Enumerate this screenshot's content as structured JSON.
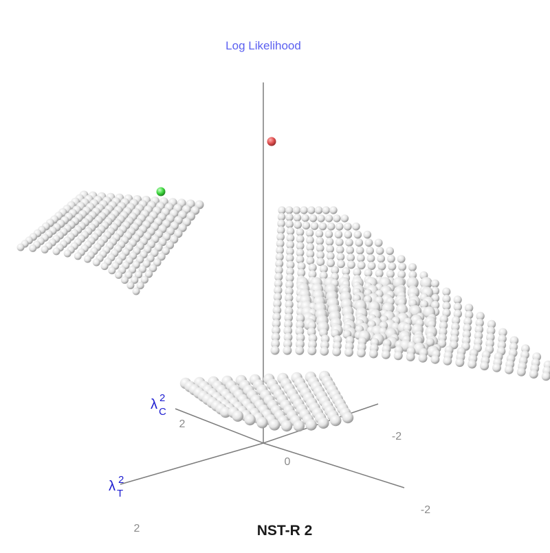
{
  "chart_data": {
    "type": "scatter",
    "subtype": "3d-sphere-surface",
    "title": "NST-R 2",
    "z_axis_label": "Log Likelihood",
    "x_axis_label": {
      "base": "λ",
      "sup": "2",
      "sub": "T"
    },
    "y_axis_label": {
      "base": "λ",
      "sup": "2",
      "sub": "C"
    },
    "tick_labels": [
      "2",
      "-2",
      "0",
      "-2",
      "2"
    ],
    "grid": false,
    "legend": "none",
    "colors": {
      "grid_sphere": "#e3e3e3",
      "highlight_max": "#e05050",
      "highlight_alt": "#3fd83f",
      "axis": "#7c7c7c",
      "axis_title": "#5a5ff0",
      "lambda_label": "#1c1cd0"
    },
    "highlighted_points": [
      {
        "name": "maximum",
        "color": "#e05050"
      },
      {
        "name": "secondary",
        "color": "#3fd83f"
      }
    ]
  }
}
